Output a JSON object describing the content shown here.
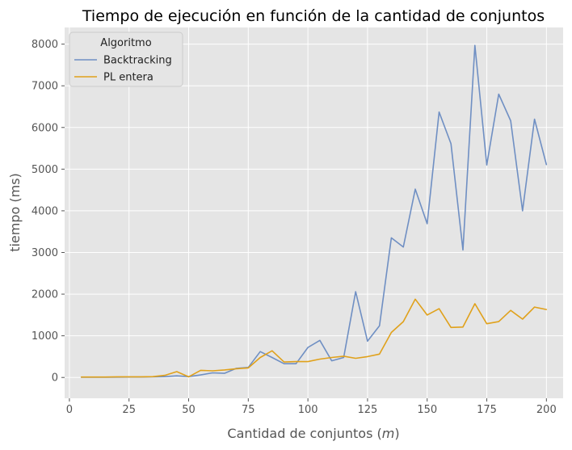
{
  "chart_data": {
    "type": "line",
    "title": "Tiempo de ejecución en función de la cantidad de conjuntos",
    "xlabel_main": "Cantidad de conjuntos (",
    "xlabel_var": "m",
    "xlabel_close": ")",
    "ylabel": "tiempo (ms)",
    "xlim": [
      -2,
      207
    ],
    "ylim": [
      -500,
      8400
    ],
    "xticks": [
      0,
      25,
      50,
      75,
      100,
      125,
      150,
      175,
      200
    ],
    "yticks": [
      0,
      1000,
      2000,
      3000,
      4000,
      5000,
      6000,
      7000,
      8000
    ],
    "grid": true,
    "legend": {
      "title": "Algoritmo",
      "placement": "top-left"
    },
    "x": [
      5,
      10,
      15,
      20,
      25,
      30,
      35,
      40,
      45,
      50,
      55,
      60,
      65,
      70,
      75,
      80,
      85,
      90,
      95,
      100,
      105,
      110,
      115,
      120,
      125,
      130,
      135,
      140,
      145,
      150,
      155,
      160,
      165,
      170,
      175,
      180,
      185,
      190,
      195,
      200
    ],
    "series": [
      {
        "name": "Backtracking",
        "color": "#6f8fc3",
        "values": [
          5,
          5,
          5,
          8,
          10,
          10,
          15,
          20,
          40,
          20,
          60,
          110,
          100,
          220,
          240,
          620,
          480,
          330,
          330,
          720,
          890,
          400,
          480,
          2060,
          870,
          1240,
          3350,
          3130,
          4520,
          3690,
          6370,
          5610,
          3060,
          7970,
          5100,
          6800,
          6160,
          4000,
          6200,
          5110
        ]
      },
      {
        "name": "PL entera",
        "color": "#e0a11b",
        "values": [
          10,
          10,
          10,
          15,
          15,
          15,
          20,
          50,
          140,
          15,
          170,
          160,
          180,
          210,
          230,
          480,
          640,
          370,
          380,
          380,
          440,
          480,
          510,
          460,
          500,
          560,
          1080,
          1340,
          1880,
          1500,
          1650,
          1200,
          1210,
          1770,
          1290,
          1340,
          1610,
          1400,
          1690,
          1630
        ]
      }
    ]
  }
}
